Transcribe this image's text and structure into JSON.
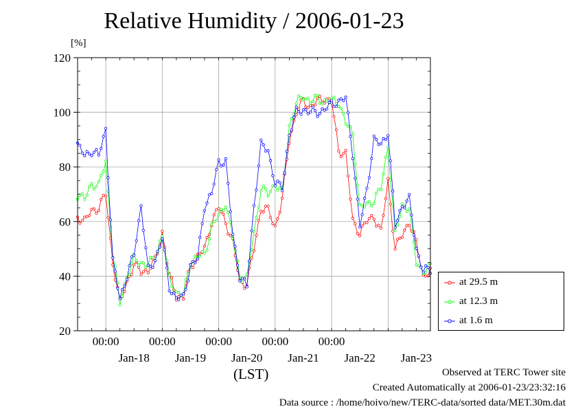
{
  "chart_data": {
    "type": "line",
    "title": "Relative Humidity / 2006-01-23",
    "ylabel": "[%]",
    "xlabel": "(LST)",
    "ylim": [
      20,
      120
    ],
    "yticks": [
      20,
      40,
      60,
      80,
      100,
      120
    ],
    "xlim": [
      "2006-01-17T12:00",
      "2006-01-23T18:00"
    ],
    "time_tick_labels": [
      "00:00",
      "00:00",
      "00:00",
      "00:00",
      "00:00"
    ],
    "date_tick_labels": [
      "Jan-18",
      "Jan-19",
      "Jan-20",
      "Jan-21",
      "Jan-22",
      "Jan-23"
    ],
    "grid": true,
    "legend_position": "right",
    "anchor_times": [
      "2006-01-17T12:00",
      "2006-01-17T15:00",
      "2006-01-17T18:00",
      "2006-01-17T21:00",
      "2006-01-18T00:00",
      "2006-01-18T03:00",
      "2006-01-18T06:00",
      "2006-01-18T09:00",
      "2006-01-18T12:00",
      "2006-01-18T15:00",
      "2006-01-18T18:00",
      "2006-01-18T21:00",
      "2006-01-19T00:00",
      "2006-01-19T03:00",
      "2006-01-19T06:00",
      "2006-01-19T09:00",
      "2006-01-19T12:00",
      "2006-01-19T15:00",
      "2006-01-19T18:00",
      "2006-01-19T21:00",
      "2006-01-20T00:00",
      "2006-01-20T03:00",
      "2006-01-20T06:00",
      "2006-01-20T09:00",
      "2006-01-20T12:00",
      "2006-01-20T15:00",
      "2006-01-20T18:00",
      "2006-01-20T21:00",
      "2006-01-21T00:00",
      "2006-01-21T03:00",
      "2006-01-21T06:00",
      "2006-01-21T09:00",
      "2006-01-21T12:00",
      "2006-01-21T15:00",
      "2006-01-21T18:00",
      "2006-01-21T21:00",
      "2006-01-22T00:00",
      "2006-01-22T03:00",
      "2006-01-22T06:00",
      "2006-01-22T09:00",
      "2006-01-22T12:00",
      "2006-01-22T15:00",
      "2006-01-22T18:00",
      "2006-01-22T21:00",
      "2006-01-23T00:00",
      "2006-01-23T03:00",
      "2006-01-23T06:00",
      "2006-01-23T09:00",
      "2006-01-23T12:00",
      "2006-01-23T15:00",
      "2006-01-23T18:00"
    ],
    "series": [
      {
        "name": "at 29.5 m",
        "color": "#ff0000",
        "values": [
          62,
          60,
          64,
          65,
          70,
          45,
          30,
          38,
          44,
          42,
          42,
          46,
          56,
          40,
          33,
          32,
          44,
          47,
          50,
          60,
          65,
          60,
          52,
          38,
          37,
          50,
          65,
          64,
          58,
          68,
          90,
          100,
          104,
          102,
          104,
          105,
          104,
          86,
          85,
          60,
          56,
          60,
          62,
          56,
          75,
          50,
          55,
          60,
          52,
          40,
          42
        ]
      },
      {
        "name": "at 12.3 m",
        "color": "#00ff00",
        "values": [
          70,
          68,
          74,
          73,
          82,
          48,
          30,
          40,
          46,
          45,
          44,
          47,
          55,
          39,
          34,
          33,
          45,
          47,
          48,
          58,
          62,
          67,
          54,
          40,
          39,
          56,
          72,
          70,
          74,
          70,
          95,
          103,
          106,
          104,
          105,
          104,
          104,
          104,
          96,
          92,
          65,
          66,
          68,
          72,
          88,
          55,
          66,
          65,
          45,
          42,
          43
        ]
      },
      {
        "name": "at 1.6 m",
        "color": "#0000ff",
        "values": [
          88,
          84,
          86,
          84,
          94,
          45,
          32,
          40,
          48,
          66,
          42,
          46,
          54,
          36,
          32,
          32,
          44,
          46,
          66,
          70,
          82,
          82,
          55,
          40,
          36,
          66,
          88,
          86,
          74,
          72,
          92,
          100,
          101,
          100,
          100,
          101,
          103,
          104,
          105,
          85,
          58,
          72,
          90,
          88,
          93,
          58,
          66,
          68,
          50,
          42,
          42
        ]
      }
    ]
  },
  "footer": {
    "line1": "Observed at TERC Tower site",
    "line2": "Created Automatically at 2006-01-23/23:32:16",
    "line3": "Data source : /home/hoivo/new/TERC-data/sorted  data/MET.30m.dat"
  }
}
